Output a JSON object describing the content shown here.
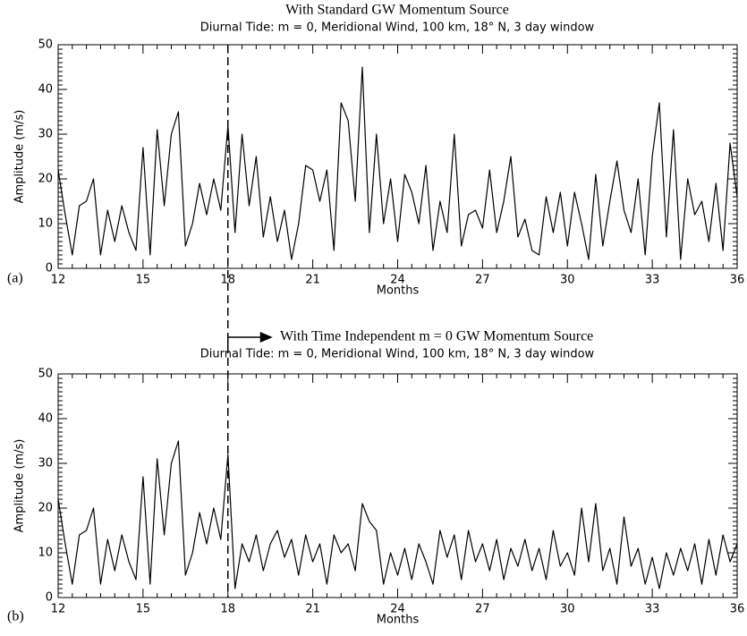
{
  "chart_data": [
    {
      "type": "line",
      "title": "With Standard GW Momentum Source",
      "subtitle": "Diurnal Tide: m = 0, Meridional Wind, 100 km, 18° N, 3 day window",
      "panel_label": "(a)",
      "xlabel": "Months",
      "ylabel": "Amplitude (m/s)",
      "xlim": [
        12,
        36
      ],
      "ylim": [
        0,
        50
      ],
      "xticks": [
        12,
        15,
        18,
        21,
        24,
        27,
        30,
        33,
        36
      ],
      "yticks": [
        0,
        10,
        20,
        30,
        40,
        50
      ],
      "vline": 18,
      "color": "#000000",
      "x": [
        12,
        12.25,
        12.5,
        12.75,
        13,
        13.25,
        13.5,
        13.75,
        14,
        14.25,
        14.5,
        14.75,
        15,
        15.25,
        15.5,
        15.75,
        16,
        16.25,
        16.5,
        16.75,
        17,
        17.25,
        17.5,
        17.75,
        18,
        18.25,
        18.5,
        18.75,
        19,
        19.25,
        19.5,
        19.75,
        20,
        20.25,
        20.5,
        20.75,
        21,
        21.25,
        21.5,
        21.75,
        22,
        22.25,
        22.5,
        22.75,
        23,
        23.25,
        23.5,
        23.75,
        24,
        24.25,
        24.5,
        24.75,
        25,
        25.25,
        25.5,
        25.75,
        26,
        26.25,
        26.5,
        26.75,
        27,
        27.25,
        27.5,
        27.75,
        28,
        28.25,
        28.5,
        28.75,
        29,
        29.25,
        29.5,
        29.75,
        30,
        30.25,
        30.5,
        30.75,
        31,
        31.25,
        31.5,
        31.75,
        32,
        32.25,
        32.5,
        32.75,
        33,
        33.25,
        33.5,
        33.75,
        34,
        34.25,
        34.5,
        34.75,
        35,
        35.25,
        35.5,
        35.75,
        36
      ],
      "values": [
        22,
        12,
        3,
        14,
        15,
        20,
        3,
        13,
        6,
        14,
        8,
        4,
        27,
        3,
        31,
        14,
        30,
        35,
        5,
        10,
        19,
        12,
        20,
        13,
        32,
        8,
        30,
        14,
        25,
        7,
        16,
        6,
        13,
        2,
        10,
        23,
        22,
        15,
        22,
        4,
        37,
        33,
        15,
        45,
        8,
        30,
        10,
        20,
        6,
        21,
        17,
        10,
        23,
        4,
        15,
        8,
        30,
        5,
        12,
        13,
        9,
        22,
        8,
        15,
        25,
        7,
        11,
        4,
        3,
        16,
        8,
        17,
        5,
        17,
        10,
        2,
        21,
        5,
        15,
        24,
        13,
        8,
        20,
        3,
        25,
        37,
        7,
        31,
        2,
        20,
        12,
        15,
        6,
        19,
        4,
        28,
        16
      ]
    },
    {
      "type": "line",
      "annotation": "With Time Independent m = 0 GW Momentum Source",
      "subtitle": "Diurnal Tide: m = 0, Meridional Wind, 100 km, 18° N, 3 day window",
      "panel_label": "(b)",
      "xlabel": "Months",
      "ylabel": "Amplitude (m/s)",
      "xlim": [
        12,
        36
      ],
      "ylim": [
        0,
        50
      ],
      "xticks": [
        12,
        15,
        18,
        21,
        24,
        27,
        30,
        33,
        36
      ],
      "yticks": [
        0,
        10,
        20,
        30,
        40,
        50
      ],
      "vline": 18,
      "color": "#000000",
      "x": [
        12,
        12.25,
        12.5,
        12.75,
        13,
        13.25,
        13.5,
        13.75,
        14,
        14.25,
        14.5,
        14.75,
        15,
        15.25,
        15.5,
        15.75,
        16,
        16.25,
        16.5,
        16.75,
        17,
        17.25,
        17.5,
        17.75,
        18,
        18.25,
        18.5,
        18.75,
        19,
        19.25,
        19.5,
        19.75,
        20,
        20.25,
        20.5,
        20.75,
        21,
        21.25,
        21.5,
        21.75,
        22,
        22.25,
        22.5,
        22.75,
        23,
        23.25,
        23.5,
        23.75,
        24,
        24.25,
        24.5,
        24.75,
        25,
        25.25,
        25.5,
        25.75,
        26,
        26.25,
        26.5,
        26.75,
        27,
        27.25,
        27.5,
        27.75,
        28,
        28.25,
        28.5,
        28.75,
        29,
        29.25,
        29.5,
        29.75,
        30,
        30.25,
        30.5,
        30.75,
        31,
        31.25,
        31.5,
        31.75,
        32,
        32.25,
        32.5,
        32.75,
        33,
        33.25,
        33.5,
        33.75,
        34,
        34.25,
        34.5,
        34.75,
        35,
        35.25,
        35.5,
        35.75,
        36
      ],
      "values": [
        22,
        12,
        3,
        14,
        15,
        20,
        3,
        13,
        6,
        14,
        8,
        4,
        27,
        3,
        31,
        14,
        30,
        35,
        5,
        10,
        19,
        12,
        20,
        13,
        32,
        2,
        12,
        8,
        14,
        6,
        12,
        15,
        9,
        13,
        5,
        14,
        8,
        12,
        3,
        14,
        10,
        12,
        6,
        21,
        17,
        15,
        3,
        10,
        5,
        11,
        4,
        12,
        8,
        3,
        15,
        9,
        14,
        4,
        15,
        8,
        12,
        6,
        13,
        4,
        11,
        7,
        13,
        6,
        11,
        4,
        15,
        7,
        10,
        5,
        20,
        8,
        21,
        6,
        11,
        3,
        18,
        7,
        11,
        3,
        9,
        2,
        10,
        5,
        11,
        6,
        12,
        3,
        13,
        5,
        14,
        8,
        12
      ]
    }
  ]
}
